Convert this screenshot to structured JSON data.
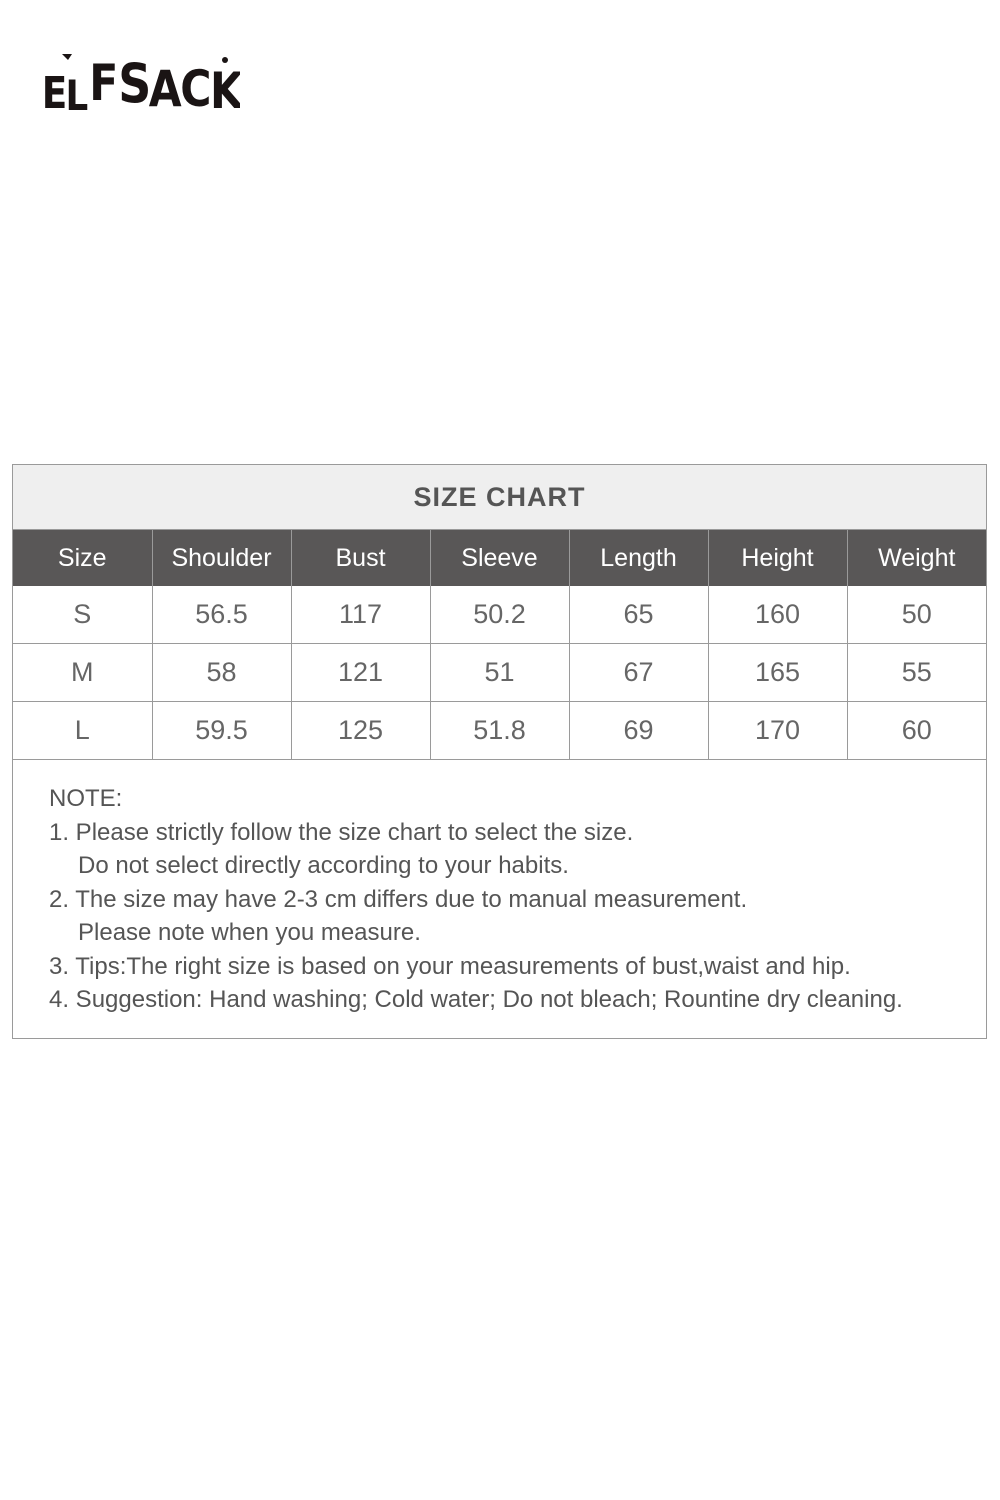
{
  "brand": {
    "logo_text": "ELFSACK"
  },
  "size_chart": {
    "title": "SIZE CHART",
    "columns": [
      "Size",
      "Shoulder",
      "Bust",
      "Sleeve",
      "Length",
      "Height",
      "Weight"
    ],
    "rows": [
      [
        "S",
        "56.5",
        "117",
        "50.2",
        "65",
        "160",
        "50"
      ],
      [
        "M",
        "58",
        "121",
        "51",
        "67",
        "165",
        "55"
      ],
      [
        "L",
        "59.5",
        "125",
        "51.8",
        "69",
        "170",
        "60"
      ]
    ],
    "header_color": "#595757",
    "title_bg": "#efefef"
  },
  "notes": {
    "heading": "NOTE:",
    "lines": [
      "1. Please strictly follow the size chart to select the size.",
      "Do not select directly according to your habits.",
      "2. The size may have 2-3 cm differs due to manual measurement.",
      "Please note when you measure.",
      "3. Tips:The right size is based on your measurements of bust,waist and hip.",
      "4. Suggestion: Hand washing; Cold water; Do not bleach; Rountine dry cleaning."
    ]
  }
}
